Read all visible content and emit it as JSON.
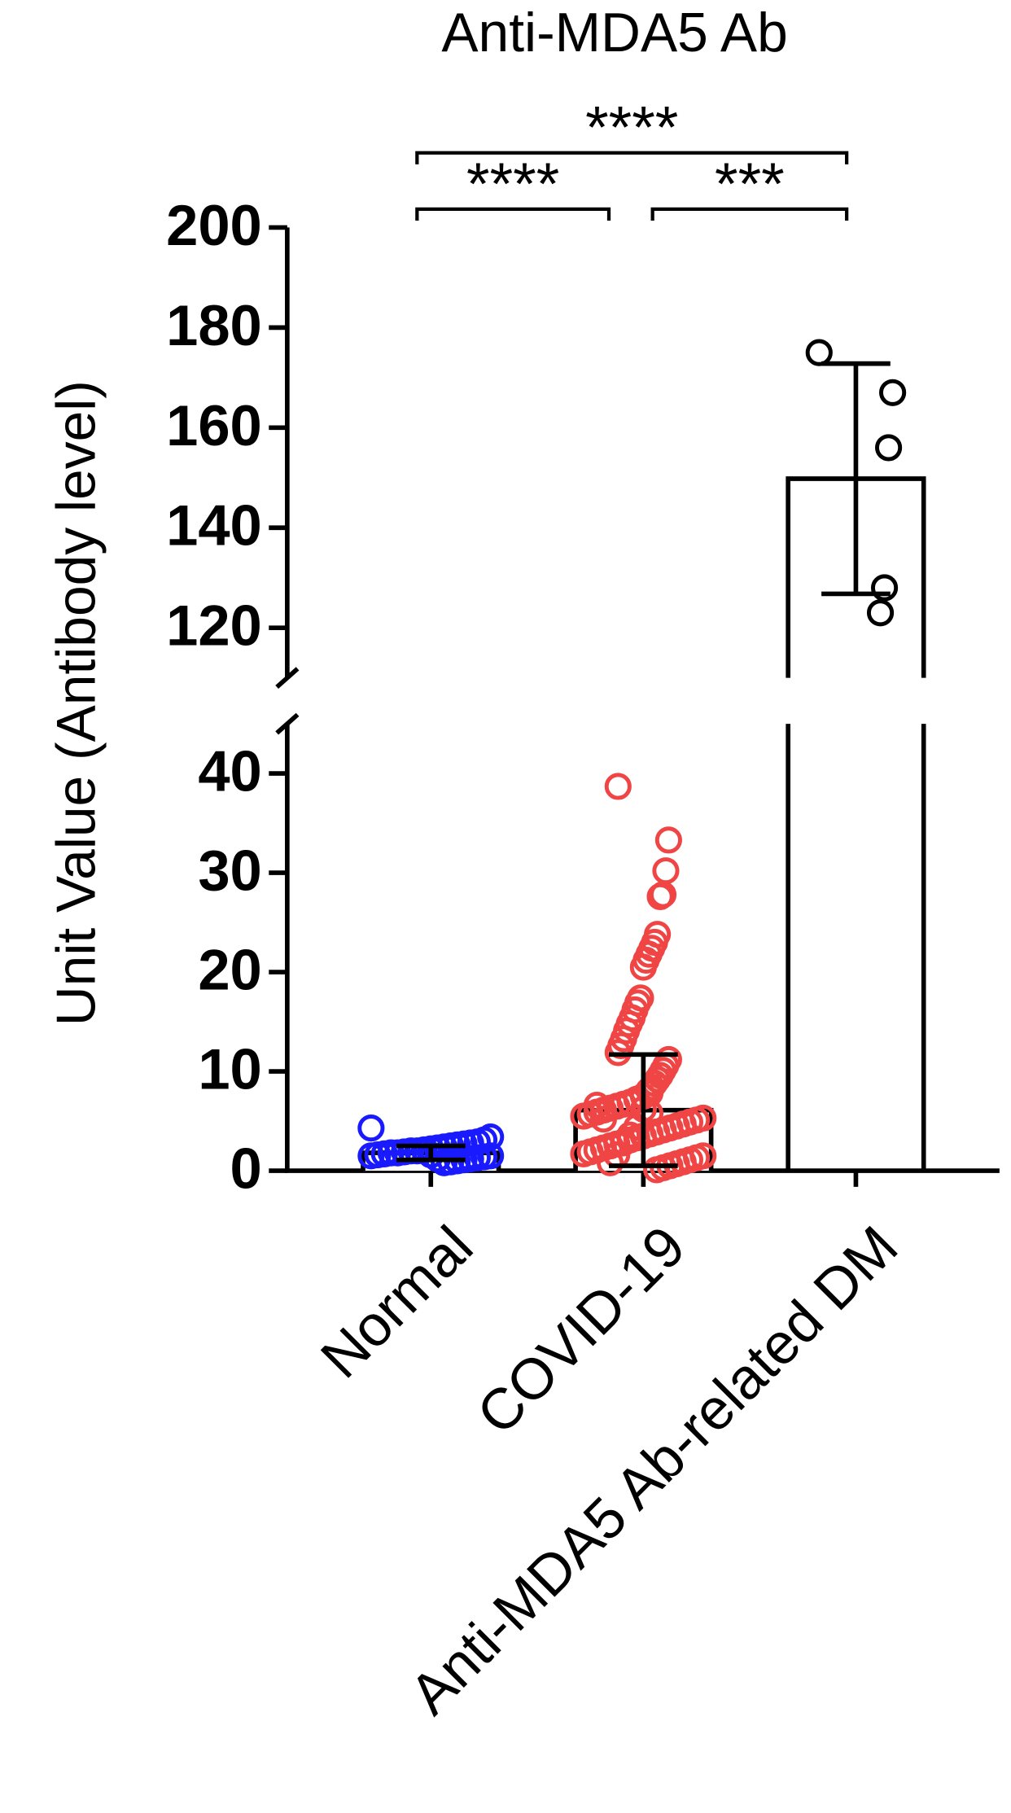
{
  "chart_data": {
    "type": "bar",
    "title": "Anti-MDA5 Ab",
    "y_label": "Unit Value (Antibody level)",
    "categories": [
      "Normal",
      "COVID-19",
      "Anti-MDA5 Ab-related DM"
    ],
    "values": [
      1.8,
      6.1,
      149.8
    ],
    "errors": [
      0.7,
      5.6,
      23
    ],
    "colors": [
      "#1a1aff",
      "#f04545",
      "#000000"
    ],
    "points": [
      [
        4.3,
        3.4,
        3.1,
        2.9,
        2.8,
        2.7,
        2.6,
        2.5,
        2.4,
        2.3,
        2.2,
        2.1,
        2.0,
        2.0,
        1.9,
        1.8,
        1.8,
        1.7,
        1.6,
        1.5,
        1.5,
        1.4,
        1.3,
        1.2,
        1.1,
        1.0,
        0.9,
        0.8,
        1.2,
        1.6
      ],
      [
        38.7,
        33.3,
        30.2,
        27.8,
        27.6,
        23.8,
        23.0,
        22.4,
        21.8,
        21.2,
        20.5,
        17.4,
        16.9,
        16.2,
        15.4,
        14.8,
        14.1,
        13.3,
        12.6,
        11.9,
        11.2,
        10.6,
        10.1,
        9.6,
        9.2,
        8.8,
        8.4,
        8.1,
        7.8,
        7.5,
        7.2,
        6.9,
        6.7,
        6.5,
        6.3,
        6.1,
        5.9,
        5.7,
        5.5,
        5.3,
        5.1,
        4.9,
        4.7,
        4.5,
        4.3,
        4.1,
        3.9,
        3.7,
        3.5,
        3.3,
        3.1,
        2.9,
        2.7,
        2.5,
        2.3,
        2.1,
        1.9,
        1.7,
        1.5,
        1.3,
        1.1,
        0.9,
        0.7,
        0.5,
        0.3,
        0.1,
        5.8,
        6.2,
        4.4,
        3.6,
        2.8,
        1.6,
        0.8,
        5.2,
        6.6
      ],
      [
        175,
        167,
        156,
        128,
        123
      ]
    ],
    "ylim_segments": [
      [
        0,
        45
      ],
      [
        110,
        200
      ]
    ],
    "yticks": [
      0,
      10,
      20,
      30,
      40,
      120,
      140,
      160,
      180,
      200
    ],
    "brackets": [
      {
        "label": "****",
        "from": "Normal",
        "to": "Anti-MDA5 Ab-related DM"
      },
      {
        "label": "****",
        "from": "Normal",
        "to": "COVID-19"
      },
      {
        "label": "***",
        "from": "COVID-19",
        "to": "Anti-MDA5 Ab-related DM"
      }
    ]
  }
}
